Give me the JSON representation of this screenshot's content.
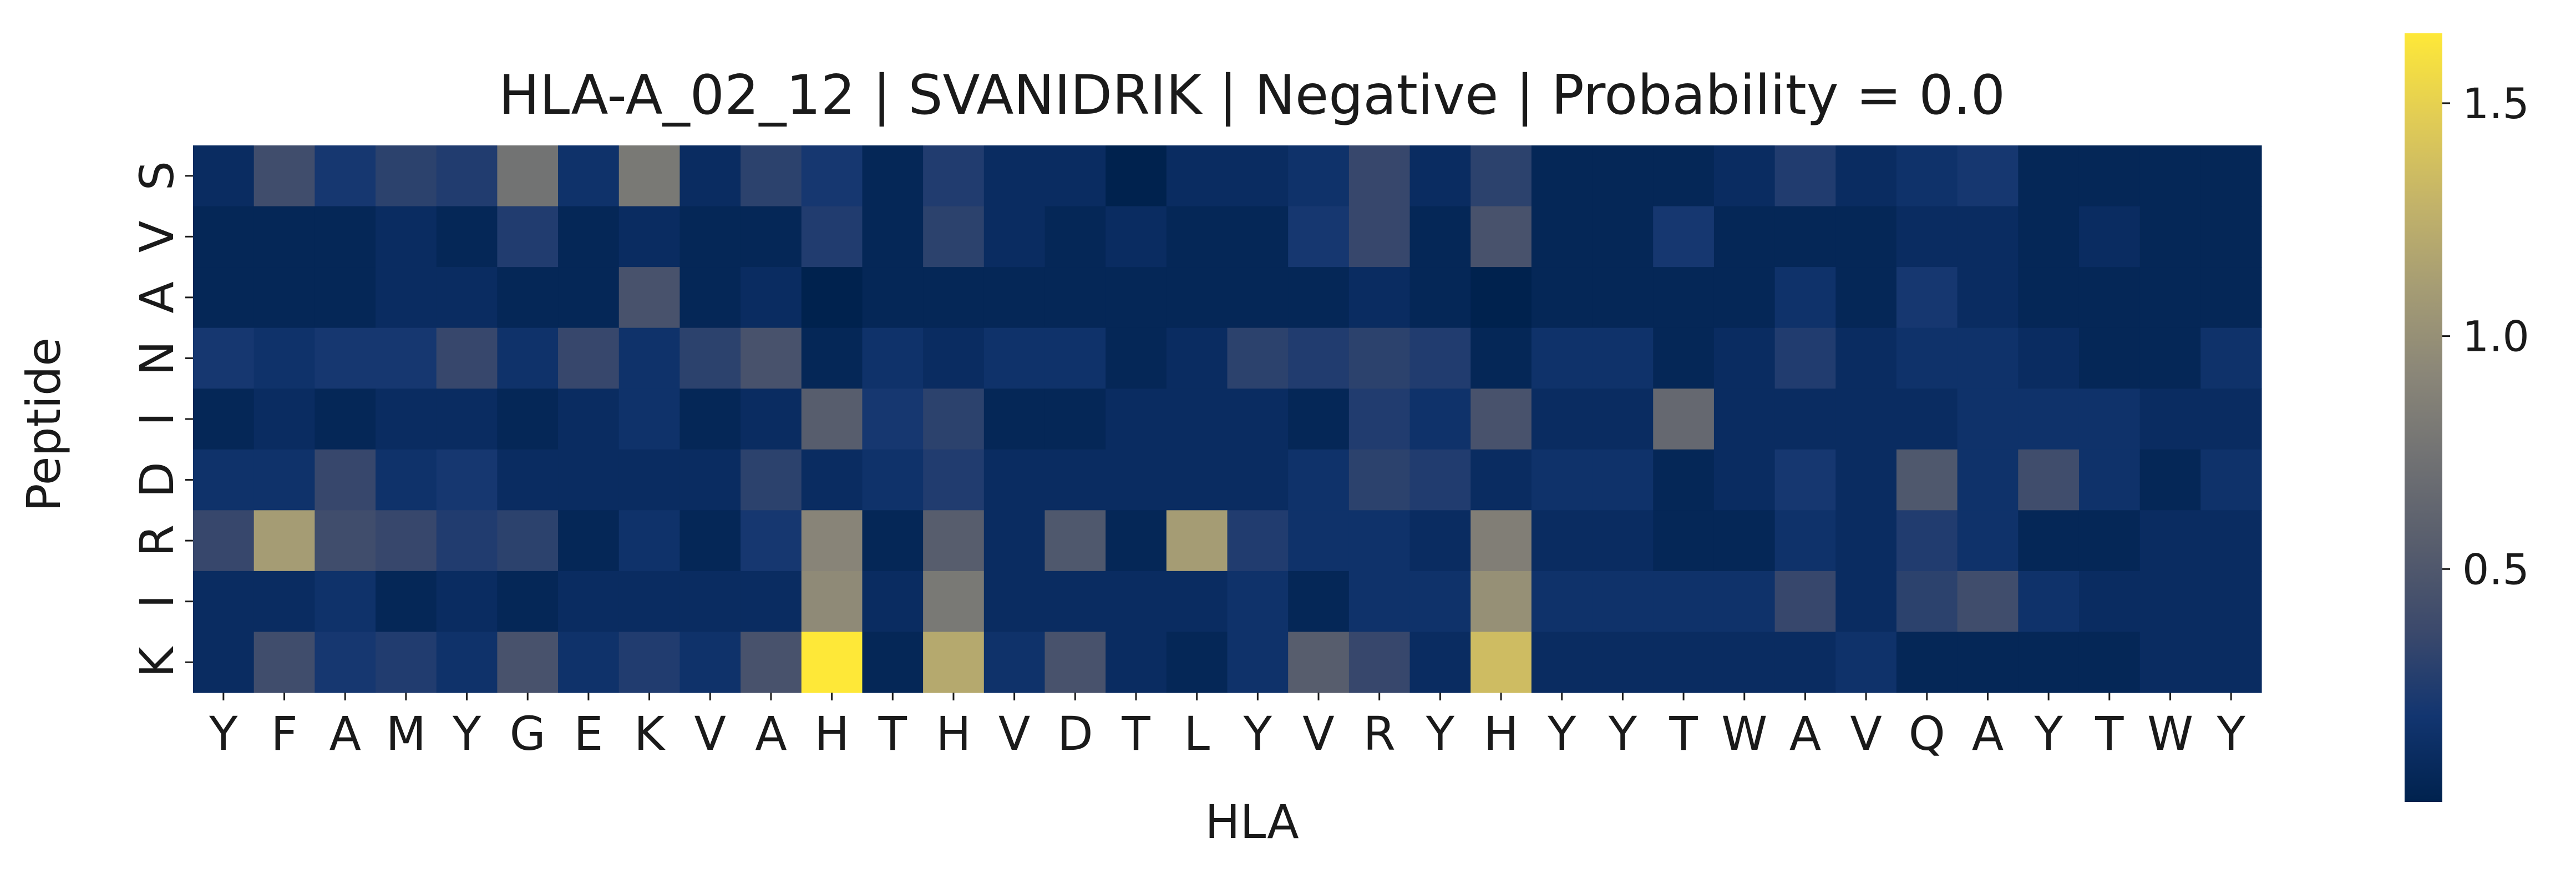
{
  "chart_data": {
    "type": "heatmap",
    "title": "HLA-A_02_12 | SVANIDRIK | Negative | Probability = 0.0",
    "xlabel": "HLA",
    "ylabel": "Peptide",
    "x_categories": [
      "Y",
      "F",
      "A",
      "M",
      "Y",
      "G",
      "E",
      "K",
      "V",
      "A",
      "H",
      "T",
      "H",
      "V",
      "D",
      "T",
      "L",
      "Y",
      "V",
      "R",
      "Y",
      "H",
      "Y",
      "Y",
      "T",
      "W",
      "A",
      "V",
      "Q",
      "A",
      "Y",
      "T",
      "W",
      "Y"
    ],
    "y_categories": [
      "S",
      "V",
      "A",
      "N",
      "I",
      "D",
      "R",
      "I",
      "K"
    ],
    "values": [
      [
        0.1,
        0.4,
        0.2,
        0.3,
        0.25,
        0.75,
        0.15,
        0.8,
        0.1,
        0.3,
        0.2,
        0.05,
        0.25,
        0.1,
        0.1,
        0.0,
        0.1,
        0.1,
        0.15,
        0.35,
        0.1,
        0.3,
        0.05,
        0.05,
        0.05,
        0.1,
        0.25,
        0.1,
        0.15,
        0.2,
        0.05,
        0.05,
        0.05,
        0.05
      ],
      [
        0.05,
        0.05,
        0.05,
        0.1,
        0.05,
        0.25,
        0.05,
        0.1,
        0.05,
        0.05,
        0.25,
        0.05,
        0.3,
        0.1,
        0.05,
        0.1,
        0.05,
        0.05,
        0.2,
        0.35,
        0.05,
        0.45,
        0.05,
        0.05,
        0.2,
        0.05,
        0.05,
        0.05,
        0.1,
        0.1,
        0.05,
        0.1,
        0.05,
        0.05
      ],
      [
        0.05,
        0.05,
        0.05,
        0.1,
        0.1,
        0.05,
        0.05,
        0.45,
        0.05,
        0.1,
        0.0,
        0.05,
        0.05,
        0.05,
        0.05,
        0.05,
        0.05,
        0.05,
        0.05,
        0.1,
        0.05,
        0.0,
        0.05,
        0.05,
        0.05,
        0.05,
        0.15,
        0.05,
        0.2,
        0.1,
        0.05,
        0.05,
        0.05,
        0.05
      ],
      [
        0.2,
        0.15,
        0.2,
        0.2,
        0.35,
        0.15,
        0.35,
        0.15,
        0.3,
        0.45,
        0.05,
        0.15,
        0.1,
        0.15,
        0.15,
        0.05,
        0.1,
        0.3,
        0.25,
        0.3,
        0.25,
        0.05,
        0.15,
        0.15,
        0.05,
        0.1,
        0.25,
        0.1,
        0.15,
        0.15,
        0.1,
        0.05,
        0.05,
        0.15
      ],
      [
        0.05,
        0.1,
        0.05,
        0.1,
        0.1,
        0.05,
        0.1,
        0.15,
        0.05,
        0.1,
        0.55,
        0.2,
        0.3,
        0.05,
        0.05,
        0.1,
        0.1,
        0.1,
        0.05,
        0.25,
        0.15,
        0.45,
        0.1,
        0.1,
        0.65,
        0.1,
        0.1,
        0.1,
        0.1,
        0.15,
        0.15,
        0.15,
        0.1,
        0.1
      ],
      [
        0.15,
        0.15,
        0.35,
        0.15,
        0.2,
        0.1,
        0.1,
        0.1,
        0.1,
        0.3,
        0.1,
        0.15,
        0.25,
        0.1,
        0.1,
        0.1,
        0.1,
        0.1,
        0.15,
        0.3,
        0.25,
        0.1,
        0.15,
        0.15,
        0.05,
        0.1,
        0.2,
        0.1,
        0.5,
        0.15,
        0.4,
        0.15,
        0.05,
        0.15
      ],
      [
        0.35,
        1.1,
        0.4,
        0.35,
        0.25,
        0.3,
        0.05,
        0.15,
        0.05,
        0.2,
        0.9,
        0.05,
        0.55,
        0.1,
        0.5,
        0.05,
        1.1,
        0.25,
        0.15,
        0.15,
        0.1,
        0.85,
        0.1,
        0.1,
        0.05,
        0.05,
        0.15,
        0.1,
        0.25,
        0.15,
        0.05,
        0.05,
        0.1,
        0.1
      ],
      [
        0.1,
        0.1,
        0.15,
        0.05,
        0.1,
        0.05,
        0.1,
        0.1,
        0.1,
        0.1,
        0.95,
        0.1,
        0.8,
        0.1,
        0.1,
        0.1,
        0.1,
        0.15,
        0.05,
        0.15,
        0.15,
        1.0,
        0.15,
        0.15,
        0.15,
        0.15,
        0.35,
        0.1,
        0.3,
        0.4,
        0.15,
        0.1,
        0.1,
        0.1
      ],
      [
        0.1,
        0.4,
        0.2,
        0.25,
        0.15,
        0.45,
        0.15,
        0.25,
        0.15,
        0.45,
        1.65,
        0.05,
        1.2,
        0.15,
        0.45,
        0.1,
        0.05,
        0.15,
        0.55,
        0.35,
        0.1,
        1.35,
        0.1,
        0.1,
        0.1,
        0.1,
        0.1,
        0.15,
        0.05,
        0.05,
        0.05,
        0.05,
        0.1,
        0.1
      ]
    ],
    "colormap": "cividis",
    "colorbar": {
      "range": [
        0.0,
        1.65
      ],
      "ticks": [
        0.5,
        1.0,
        1.5
      ],
      "tick_labels": [
        "0.5",
        "1.0",
        "1.5"
      ],
      "colors": [
        "#00224e",
        "#123570",
        "#3b496c",
        "#575d6d",
        "#707173",
        "#8a8678",
        "#a59c74",
        "#c3b369",
        "#e1cc55",
        "#fee838"
      ]
    }
  }
}
